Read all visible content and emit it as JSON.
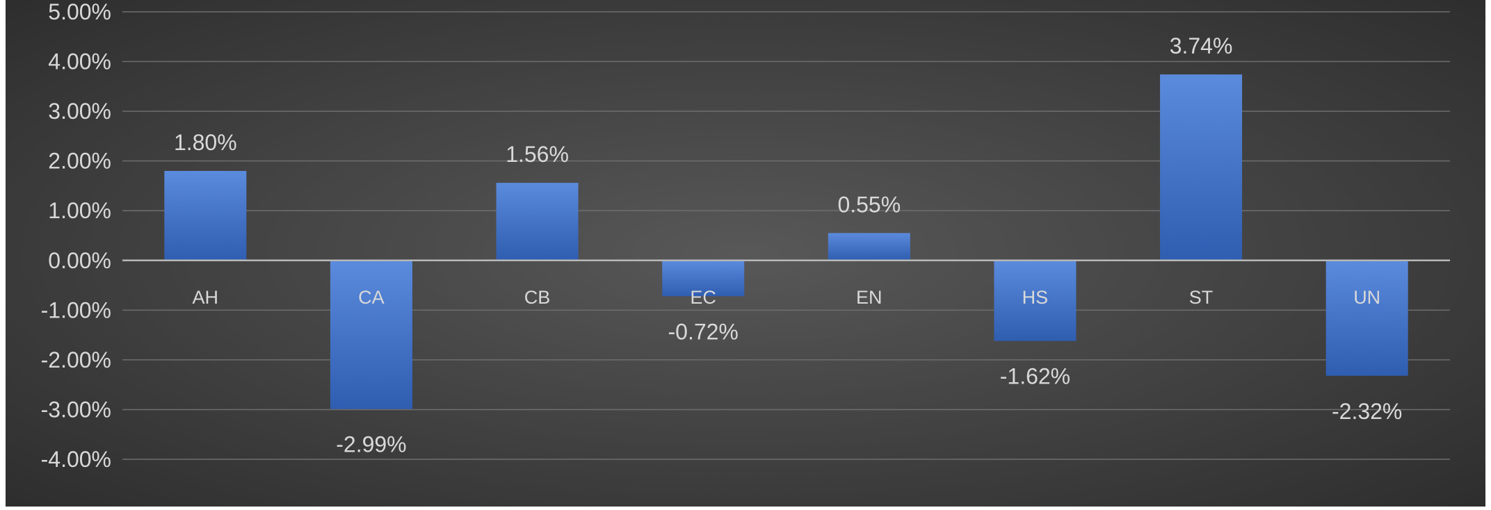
{
  "chart_data": {
    "type": "bar",
    "title": "",
    "xlabel": "",
    "ylabel": "",
    "categories": [
      "AH",
      "CA",
      "CB",
      "EC",
      "EN",
      "HS",
      "ST",
      "UN"
    ],
    "values": [
      1.8,
      -2.99,
      1.56,
      -0.72,
      0.55,
      -1.62,
      3.74,
      -2.32
    ],
    "data_labels": [
      "1.80%",
      "-2.99%",
      "1.56%",
      "-0.72%",
      "0.55%",
      "-1.62%",
      "3.74%",
      "-2.32%"
    ],
    "ylim": [
      -4,
      5
    ],
    "y_ticks": [
      5,
      4,
      3,
      2,
      1,
      0,
      -1,
      -2,
      -3,
      -4
    ],
    "y_tick_labels": [
      "5.00%",
      "4.00%",
      "3.00%",
      "2.00%",
      "1.00%",
      "0.00%",
      "-1.00%",
      "-2.00%",
      "-3.00%",
      "-4.00%"
    ],
    "grid": true,
    "legend": "none",
    "colors": {
      "bar": "#4472c4",
      "bar_light": "#5b8bdc",
      "bar_dark": "#2f5db0",
      "gridline": "#6e6e6e",
      "zero_line": "#b8b8b8",
      "text": "#d9d9d9",
      "background_center": "#585858",
      "background_edge": "#2b2b2b",
      "frame": "#ffffff"
    }
  }
}
